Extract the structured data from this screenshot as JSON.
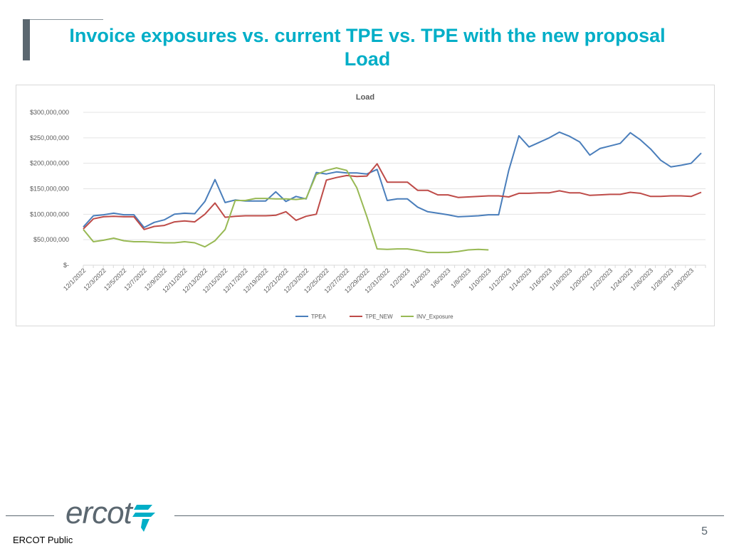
{
  "slide": {
    "title_line1": "Invoice exposures vs. current TPE vs. TPE with the new proposal",
    "title_line2": "Load",
    "footer_label": "ERCOT Public",
    "page_number": "5",
    "logo_text": "ercot"
  },
  "chart_data": {
    "type": "line",
    "title": "Load",
    "xlabel": "",
    "ylabel": "",
    "ylim": [
      0,
      300000000
    ],
    "yticks": [
      0,
      50000000,
      100000000,
      150000000,
      200000000,
      250000000,
      300000000
    ],
    "ytick_labels": [
      "$-",
      "$50,000,000",
      "$100,000,000",
      "$150,000,000",
      "$200,000,000",
      "$250,000,000",
      "$300,000,000"
    ],
    "grid": true,
    "legend_position": "bottom",
    "categories": [
      "12/1/2022",
      "12/2/2022",
      "12/3/2022",
      "12/4/2022",
      "12/5/2022",
      "12/6/2022",
      "12/7/2022",
      "12/8/2022",
      "12/9/2022",
      "12/10/2022",
      "12/11/2022",
      "12/12/2022",
      "12/13/2022",
      "12/14/2022",
      "12/15/2022",
      "12/16/2022",
      "12/17/2022",
      "12/18/2022",
      "12/19/2022",
      "12/20/2022",
      "12/21/2022",
      "12/22/2022",
      "12/23/2022",
      "12/24/2022",
      "12/25/2022",
      "12/26/2022",
      "12/27/2022",
      "12/28/2022",
      "12/29/2022",
      "12/30/2022",
      "12/31/2022",
      "1/1/2023",
      "1/2/2023",
      "1/3/2023",
      "1/4/2023",
      "1/5/2023",
      "1/6/2023",
      "1/7/2023",
      "1/8/2023",
      "1/9/2023",
      "1/10/2023",
      "1/11/2023",
      "1/12/2023",
      "1/13/2023",
      "1/14/2023",
      "1/15/2023",
      "1/16/2023",
      "1/17/2023",
      "1/18/2023",
      "1/19/2023",
      "1/20/2023",
      "1/21/2023",
      "1/22/2023",
      "1/23/2023",
      "1/24/2023",
      "1/25/2023",
      "1/26/2023",
      "1/27/2023",
      "1/28/2023",
      "1/29/2023",
      "1/30/2023",
      "1/31/2023"
    ],
    "xtick_labels": [
      "12/1/2022",
      "12/3/2022",
      "12/5/2022",
      "12/7/2022",
      "12/9/2022",
      "12/11/2022",
      "12/13/2022",
      "12/15/2022",
      "12/17/2022",
      "12/19/2022",
      "12/21/2022",
      "12/23/2022",
      "12/25/2022",
      "12/27/2022",
      "12/29/2022",
      "12/31/2022",
      "1/2/2023",
      "1/4/2023",
      "1/6/2023",
      "1/8/2023",
      "1/10/2023",
      "1/12/2023",
      "1/14/2023",
      "1/16/2023",
      "1/18/2023",
      "1/20/2023",
      "1/22/2023",
      "1/24/2023",
      "1/26/2023",
      "1/28/2023",
      "1/30/2023"
    ],
    "series": [
      {
        "name": "TPEA",
        "color": "#4a7ebb",
        "values": [
          75000000,
          97000000,
          99000000,
          102000000,
          99000000,
          99000000,
          74000000,
          84000000,
          89000000,
          100000000,
          102000000,
          101000000,
          125000000,
          168000000,
          123000000,
          128000000,
          126000000,
          126000000,
          126000000,
          144000000,
          125000000,
          135000000,
          130000000,
          182000000,
          179000000,
          183000000,
          181000000,
          181000000,
          179000000,
          188000000,
          127000000,
          130000000,
          130000000,
          114000000,
          105000000,
          102000000,
          99000000,
          95000000,
          96000000,
          97000000,
          99000000,
          99000000,
          186000000,
          254000000,
          232000000,
          241000000,
          250000000,
          261000000,
          253000000,
          242000000,
          216000000,
          229000000,
          234000000,
          239000000,
          260000000,
          246000000,
          228000000,
          206000000,
          193000000,
          196000000,
          200000000,
          220000000
        ]
      },
      {
        "name": "TPE_NEW",
        "color": "#be4b48",
        "values": [
          71000000,
          91000000,
          95000000,
          96000000,
          95000000,
          95000000,
          70000000,
          76000000,
          78000000,
          85000000,
          87000000,
          85000000,
          100000000,
          122000000,
          94000000,
          96000000,
          97000000,
          97000000,
          97000000,
          98000000,
          105000000,
          88000000,
          96000000,
          100000000,
          167000000,
          172000000,
          176000000,
          174000000,
          175000000,
          199000000,
          163000000,
          163000000,
          163000000,
          147000000,
          147000000,
          138000000,
          138000000,
          133000000,
          134000000,
          135000000,
          136000000,
          136000000,
          134000000,
          141000000,
          141000000,
          142000000,
          142000000,
          146000000,
          142000000,
          142000000,
          137000000,
          138000000,
          139000000,
          139000000,
          143000000,
          141000000,
          135000000,
          135000000,
          136000000,
          136000000,
          135000000,
          143000000
        ]
      },
      {
        "name": "INV_Exposure",
        "color": "#98b954",
        "values": [
          70000000,
          46000000,
          49000000,
          53000000,
          48000000,
          46000000,
          46000000,
          45000000,
          44000000,
          44000000,
          46000000,
          44000000,
          36000000,
          48000000,
          70000000,
          127000000,
          127000000,
          131000000,
          131000000,
          130000000,
          130000000,
          129000000,
          131000000,
          178000000,
          186000000,
          191000000,
          186000000,
          152000000,
          95000000,
          32000000,
          31000000,
          32000000,
          32000000,
          29000000,
          25000000,
          25000000,
          25000000,
          27000000,
          30000000,
          31000000,
          30000000,
          null,
          null,
          null,
          null,
          null,
          null,
          null,
          null,
          null,
          null,
          null,
          null,
          null,
          null,
          null,
          null,
          null,
          null,
          null,
          null,
          null
        ]
      }
    ]
  }
}
